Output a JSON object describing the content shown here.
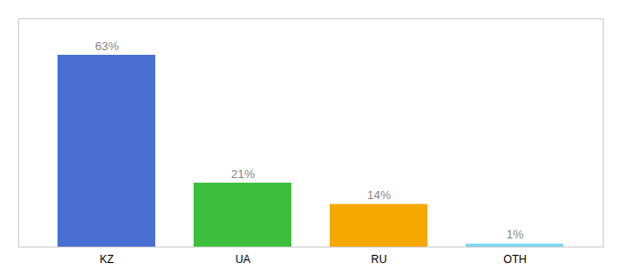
{
  "chart_data": {
    "type": "bar",
    "categories": [
      "KZ",
      "UA",
      "RU",
      "OTH"
    ],
    "values": [
      63,
      21,
      14,
      1
    ],
    "value_labels": [
      "63%",
      "21%",
      "14%",
      "1%"
    ],
    "colors": [
      "#4a6fd4",
      "#3dbf3d",
      "#f5a800",
      "#7dd8f5"
    ],
    "ylim": [
      0,
      75
    ],
    "data_labels": true,
    "tick_labels": "x"
  }
}
